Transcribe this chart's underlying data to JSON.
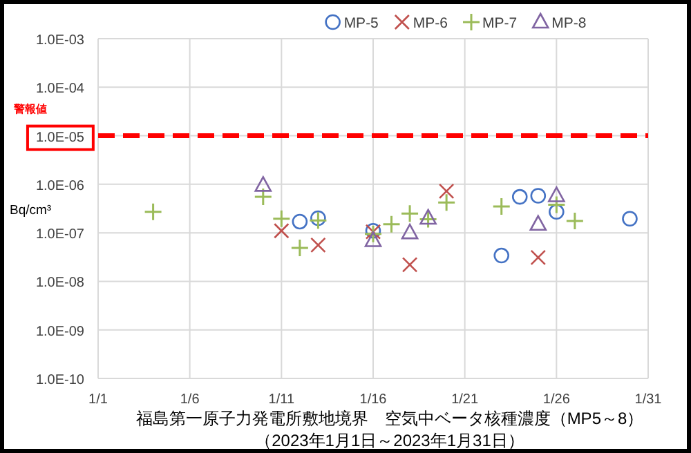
{
  "chart_data": {
    "type": "scatter",
    "title": "福島第一原子力発電所敷地境界　空気中ベータ核種濃度（MP5～8）",
    "subtitle": "（2023年1月1日～2023年1月31日）",
    "ylabel": "Bq/cm³",
    "log": "y",
    "grid": true,
    "legend": "top",
    "xlim": [
      "2023-01-01",
      "2023-01-31"
    ],
    "xticks": [
      {
        "value": "2023-01-01",
        "label": "1/1"
      },
      {
        "value": "2023-01-06",
        "label": "1/6"
      },
      {
        "value": "2023-01-11",
        "label": "1/11"
      },
      {
        "value": "2023-01-16",
        "label": "1/16"
      },
      {
        "value": "2023-01-21",
        "label": "1/21"
      },
      {
        "value": "2023-01-26",
        "label": "1/26"
      },
      {
        "value": "2023-01-31",
        "label": "1/31"
      }
    ],
    "ylim": [
      1e-10,
      0.001
    ],
    "yticks": [
      {
        "value": 1e-10,
        "label": "1.0E-10"
      },
      {
        "value": 1e-09,
        "label": "1.0E-09"
      },
      {
        "value": 1e-08,
        "label": "1.0E-08"
      },
      {
        "value": 1e-07,
        "label": "1.0E-07"
      },
      {
        "value": 1e-06,
        "label": "1.0E-06"
      },
      {
        "value": 1e-05,
        "label": "1.0E-05"
      },
      {
        "value": 0.0001,
        "label": "1.0E-04"
      },
      {
        "value": 0.001,
        "label": "1.0E-03"
      }
    ],
    "ref_lines": [
      {
        "axis": "y",
        "value": 1e-05,
        "label": "警報値",
        "color": "#ff0000",
        "line_style": "dashed"
      }
    ],
    "series": [
      {
        "name": "MP-5",
        "color": "#4472c4",
        "marker": "circle",
        "x": [
          "2023-01-12",
          "2023-01-13",
          "2023-01-16",
          "2023-01-23",
          "2023-01-24",
          "2023-01-25",
          "2023-01-26",
          "2023-01-30"
        ],
        "values": [
          1.7e-07,
          2e-07,
          1.1e-07,
          3.4e-08,
          5.5e-07,
          5.8e-07,
          2.7e-07,
          1.95e-07
        ]
      },
      {
        "name": "MP-6",
        "color": "#c0504d",
        "marker": "cross",
        "x": [
          "2023-01-11",
          "2023-01-13",
          "2023-01-16",
          "2023-01-18",
          "2023-01-20",
          "2023-01-25"
        ],
        "values": [
          1.1e-07,
          5.6e-08,
          1.05e-07,
          2.2e-08,
          7.2e-07,
          3.1e-08
        ]
      },
      {
        "name": "MP-7",
        "color": "#9bbb59",
        "marker": "plus",
        "x": [
          "2023-01-04",
          "2023-01-10",
          "2023-01-11",
          "2023-01-12",
          "2023-01-13",
          "2023-01-16",
          "2023-01-17",
          "2023-01-18",
          "2023-01-19",
          "2023-01-20",
          "2023-01-23",
          "2023-01-26",
          "2023-01-27"
        ],
        "values": [
          2.7e-07,
          5.5e-07,
          1.95e-07,
          4.9e-08,
          1.8e-07,
          9.5e-08,
          1.5e-07,
          2.5e-07,
          1.9e-07,
          4.2e-07,
          3.5e-07,
          3.8e-07,
          1.75e-07
        ]
      },
      {
        "name": "MP-8",
        "color": "#8064a2",
        "marker": "triangle",
        "x": [
          "2023-01-10",
          "2023-01-16",
          "2023-01-18",
          "2023-01-19",
          "2023-01-25",
          "2023-01-26"
        ],
        "values": [
          9.5e-07,
          6.9e-08,
          1e-07,
          2e-07,
          1.5e-07,
          5.8e-07
        ]
      }
    ]
  }
}
